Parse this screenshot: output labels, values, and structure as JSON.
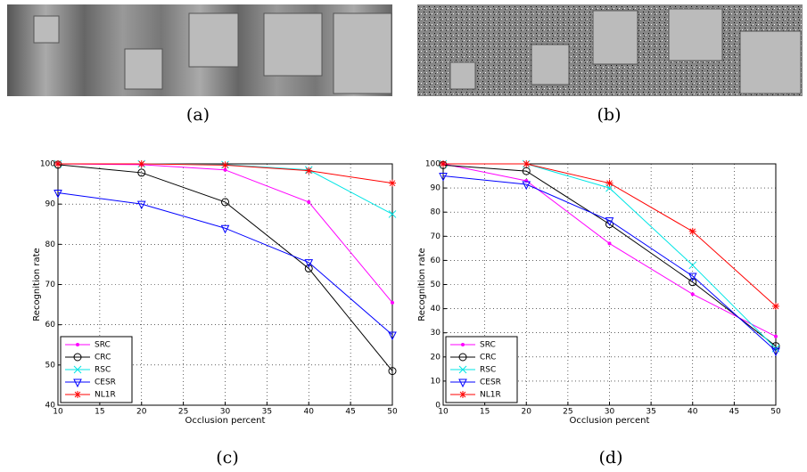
{
  "captions": [
    "(a)",
    "(b)",
    "(c)",
    "(d)"
  ],
  "chart_data": [
    {
      "type": "line",
      "xlabel": "Occlusion percent",
      "ylabel": "Recognition rate",
      "x": [
        10,
        20,
        30,
        40,
        50
      ],
      "xlim": [
        10,
        50
      ],
      "xticks": [
        10,
        15,
        20,
        25,
        30,
        35,
        40,
        45,
        50
      ],
      "ylim": [
        40,
        100
      ],
      "yticks": [
        40,
        50,
        60,
        70,
        80,
        90,
        100
      ],
      "grid": true,
      "legend": "lower left",
      "series": [
        {
          "name": "SRC",
          "color": "#ff00ff",
          "marker": "dot",
          "values": [
            100,
            99.8,
            98.5,
            90.5,
            65.5
          ]
        },
        {
          "name": "CRC",
          "color": "#000000",
          "marker": "circle",
          "values": [
            99.8,
            97.8,
            90.5,
            74,
            48.5
          ]
        },
        {
          "name": "RSC",
          "color": "#00e5e5",
          "marker": "x",
          "values": [
            100,
            100,
            99.8,
            98.5,
            87.5
          ]
        },
        {
          "name": "CESR",
          "color": "#0000ff",
          "marker": "triangle-down",
          "values": [
            92.8,
            90,
            84,
            75.5,
            57.5
          ]
        },
        {
          "name": "NL1R",
          "color": "#ff0000",
          "marker": "star",
          "values": [
            100,
            100,
            99.7,
            98.3,
            95.2
          ]
        }
      ]
    },
    {
      "type": "line",
      "xlabel": "Occlusion percent",
      "ylabel": "Recognition rate",
      "x": [
        10,
        20,
        30,
        40,
        50
      ],
      "xlim": [
        10,
        50
      ],
      "xticks": [
        10,
        15,
        20,
        25,
        30,
        35,
        40,
        45,
        50
      ],
      "ylim": [
        0,
        100
      ],
      "yticks": [
        0,
        10,
        20,
        30,
        40,
        50,
        60,
        70,
        80,
        90,
        100
      ],
      "grid": true,
      "legend": "lower left",
      "series": [
        {
          "name": "SRC",
          "color": "#ff00ff",
          "marker": "dot",
          "values": [
            100,
            93,
            67,
            46,
            28.5
          ]
        },
        {
          "name": "CRC",
          "color": "#000000",
          "marker": "circle",
          "values": [
            99.5,
            97,
            75,
            51,
            24.5
          ]
        },
        {
          "name": "RSC",
          "color": "#00e5e5",
          "marker": "x",
          "values": [
            100,
            100,
            90,
            58,
            23.5
          ]
        },
        {
          "name": "CESR",
          "color": "#0000ff",
          "marker": "triangle-down",
          "values": [
            95,
            91.5,
            76.5,
            53.5,
            22.5
          ]
        },
        {
          "name": "NL1R",
          "color": "#ff0000",
          "marker": "star",
          "values": [
            100,
            100,
            92,
            72,
            41
          ]
        }
      ]
    }
  ]
}
